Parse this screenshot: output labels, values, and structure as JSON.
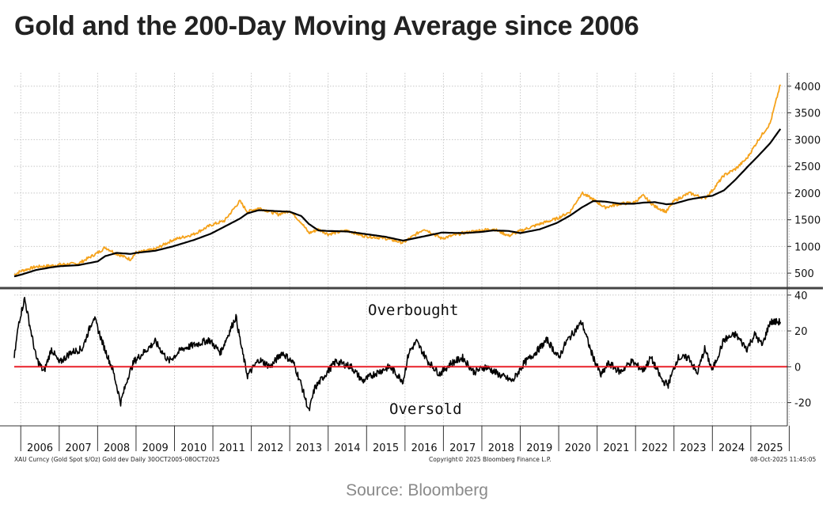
{
  "title": "Gold and the 200-Day Moving Average since 2006",
  "source": "Source: Bloomberg",
  "footer": {
    "left": "XAU Curncy (Gold Spot  $/Oz) Gold dev Daily 30OCT2005-08OCT2025",
    "center": "Copyright© 2025 Bloomberg Finance L.P.",
    "right": "08-Oct-2025 11:45:05"
  },
  "colors": {
    "price": "#f5a21b",
    "ma": "#000000",
    "deviation": "#000000",
    "zero_line": "#e8121b",
    "grid": "#c8c8c8"
  },
  "chart_data": [
    {
      "type": "line",
      "title": "",
      "xlabel": "",
      "ylabel": "",
      "ylim": [
        250,
        4250
      ],
      "yticks": [
        500,
        1000,
        1500,
        2000,
        2500,
        3000,
        3500,
        4000
      ],
      "grid": true,
      "x": [
        2005.83,
        2006.0,
        2006.4,
        2006.8,
        2007.0,
        2007.5,
        2008.0,
        2008.2,
        2008.5,
        2008.85,
        2009.0,
        2009.5,
        2009.95,
        2010.5,
        2010.95,
        2011.3,
        2011.7,
        2011.9,
        2012.2,
        2012.7,
        2013.0,
        2013.3,
        2013.5,
        2013.75,
        2014.0,
        2014.5,
        2014.9,
        2015.5,
        2015.95,
        2016.5,
        2016.95,
        2017.5,
        2017.95,
        2018.3,
        2018.7,
        2019.0,
        2019.5,
        2019.95,
        2020.3,
        2020.6,
        2020.9,
        2021.2,
        2021.6,
        2021.95,
        2022.2,
        2022.5,
        2022.8,
        2023.0,
        2023.4,
        2023.8,
        2024.0,
        2024.3,
        2024.6,
        2024.9,
        2025.2,
        2025.5,
        2025.77
      ],
      "series": [
        {
          "name": "",
          "key": "price",
          "values": [
            470,
            540,
            620,
            640,
            660,
            680,
            880,
            980,
            860,
            760,
            880,
            950,
            1120,
            1230,
            1400,
            1480,
            1850,
            1650,
            1720,
            1600,
            1670,
            1450,
            1250,
            1320,
            1230,
            1300,
            1200,
            1150,
            1070,
            1330,
            1150,
            1250,
            1300,
            1330,
            1200,
            1290,
            1420,
            1520,
            1650,
            2000,
            1880,
            1730,
            1800,
            1820,
            1950,
            1750,
            1650,
            1850,
            2000,
            1900,
            2050,
            2330,
            2450,
            2650,
            3000,
            3300,
            4030
          ]
        },
        {
          "name": "",
          "key": "ma",
          "values": [
            440,
            470,
            560,
            610,
            630,
            650,
            720,
            820,
            880,
            860,
            880,
            920,
            1000,
            1120,
            1240,
            1370,
            1520,
            1620,
            1680,
            1660,
            1650,
            1570,
            1420,
            1300,
            1290,
            1280,
            1240,
            1180,
            1110,
            1190,
            1260,
            1250,
            1270,
            1300,
            1290,
            1250,
            1320,
            1440,
            1580,
            1730,
            1850,
            1840,
            1800,
            1800,
            1820,
            1830,
            1790,
            1800,
            1880,
            1930,
            1950,
            2050,
            2250,
            2480,
            2700,
            2930,
            3200
          ]
        }
      ]
    },
    {
      "type": "line",
      "title": "",
      "ylim": [
        -33,
        43
      ],
      "yticks": [
        -20,
        0,
        20,
        40
      ],
      "annotations": [
        "Overbought",
        "Oversold"
      ],
      "reference_line": 0,
      "x": [
        2005.83,
        2005.95,
        2006.1,
        2006.4,
        2006.6,
        2006.8,
        2007.0,
        2007.3,
        2007.6,
        2007.9,
        2008.15,
        2008.4,
        2008.6,
        2008.8,
        2008.95,
        2009.2,
        2009.5,
        2009.85,
        2010.2,
        2010.5,
        2010.9,
        2011.2,
        2011.6,
        2011.75,
        2011.9,
        2012.2,
        2012.5,
        2012.8,
        2013.1,
        2013.3,
        2013.5,
        2013.65,
        2013.9,
        2014.2,
        2014.6,
        2014.9,
        2015.2,
        2015.6,
        2015.95,
        2016.1,
        2016.3,
        2016.6,
        2016.9,
        2017.2,
        2017.5,
        2017.8,
        2018.1,
        2018.5,
        2018.8,
        2019.1,
        2019.4,
        2019.7,
        2020.0,
        2020.2,
        2020.6,
        2020.85,
        2021.1,
        2021.3,
        2021.6,
        2021.9,
        2022.2,
        2022.4,
        2022.7,
        2022.85,
        2023.1,
        2023.4,
        2023.6,
        2023.8,
        2024.0,
        2024.3,
        2024.6,
        2024.9,
        2025.1,
        2025.3,
        2025.5,
        2025.77
      ],
      "series": [
        {
          "name": "",
          "key": "deviation",
          "values": [
            5,
            25,
            38,
            5,
            -3,
            10,
            2,
            8,
            10,
            28,
            12,
            -2,
            -20,
            -5,
            3,
            8,
            14,
            3,
            10,
            12,
            15,
            8,
            28,
            10,
            -5,
            4,
            0,
            8,
            2,
            -10,
            -25,
            -12,
            -5,
            3,
            0,
            -8,
            -4,
            0,
            -8,
            8,
            14,
            3,
            -4,
            2,
            5,
            -3,
            0,
            -5,
            -8,
            2,
            8,
            15,
            5,
            14,
            25,
            8,
            -5,
            2,
            -3,
            3,
            -2,
            5,
            -8,
            -10,
            5,
            5,
            -4,
            10,
            -2,
            15,
            18,
            10,
            18,
            12,
            25,
            25
          ]
        }
      ]
    }
  ],
  "x_axis_years": [
    "2006",
    "2007",
    "2008",
    "2009",
    "2010",
    "2011",
    "2012",
    "2013",
    "2014",
    "2015",
    "2016",
    "2017",
    "2018",
    "2019",
    "2020",
    "2021",
    "2022",
    "2023",
    "2024",
    "2025"
  ]
}
